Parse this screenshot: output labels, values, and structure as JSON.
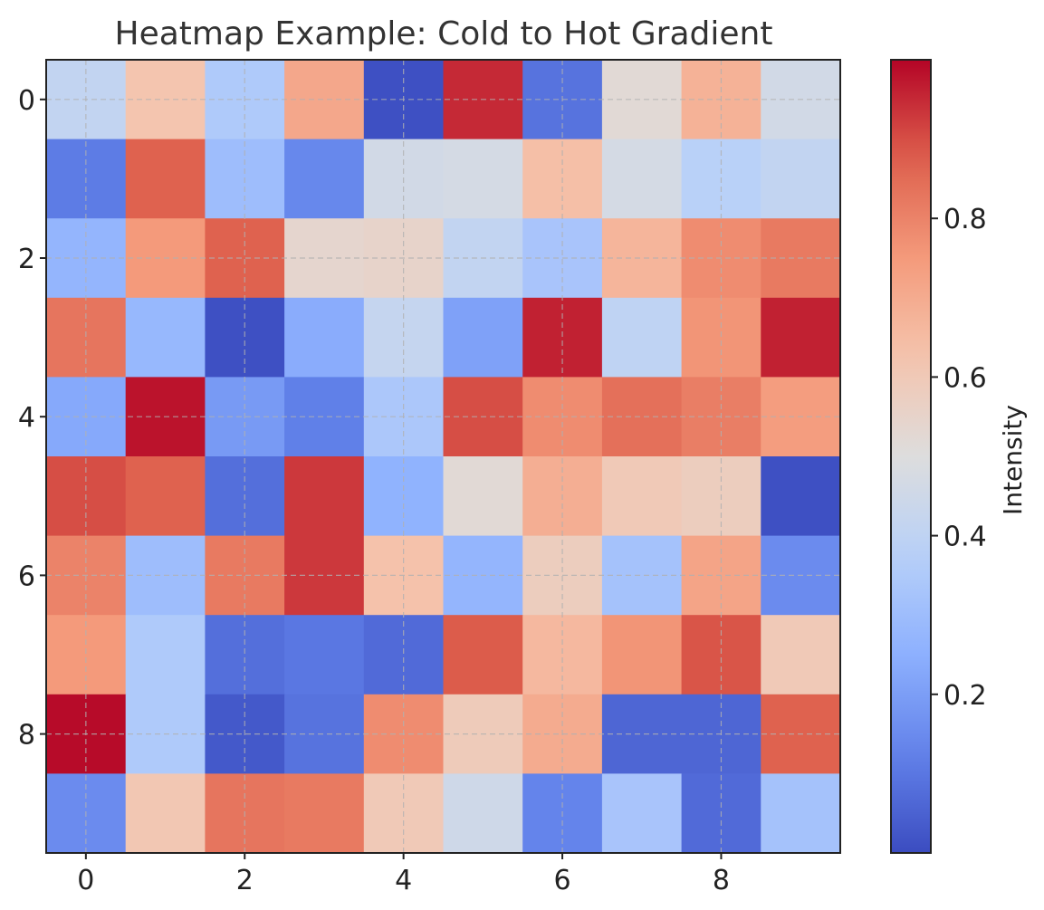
{
  "chart_data": {
    "type": "heatmap",
    "title": "Heatmap Example: Cold to Hot Gradient",
    "xlabel": "",
    "ylabel": "",
    "colormap": "coolwarm",
    "xticks": [
      0,
      2,
      4,
      6,
      8
    ],
    "yticks": [
      0,
      2,
      4,
      6,
      8
    ],
    "grid": true,
    "colorbar": {
      "label": "Intensity",
      "vmin": 0.0,
      "vmax": 1.0,
      "ticks": [
        0.2,
        0.4,
        0.6,
        0.8
      ],
      "tick_labels": [
        "0.2",
        "0.4",
        "0.6",
        "0.8"
      ]
    },
    "values": [
      [
        0.41,
        0.62,
        0.35,
        0.71,
        0.01,
        0.95,
        0.09,
        0.52,
        0.68,
        0.46
      ],
      [
        0.11,
        0.87,
        0.3,
        0.14,
        0.46,
        0.47,
        0.64,
        0.47,
        0.38,
        0.41
      ],
      [
        0.27,
        0.75,
        0.87,
        0.54,
        0.55,
        0.41,
        0.33,
        0.67,
        0.78,
        0.82
      ],
      [
        0.83,
        0.28,
        0.01,
        0.24,
        0.42,
        0.21,
        0.96,
        0.4,
        0.76,
        0.96
      ],
      [
        0.23,
        0.98,
        0.19,
        0.12,
        0.34,
        0.9,
        0.78,
        0.84,
        0.81,
        0.74
      ],
      [
        0.9,
        0.87,
        0.08,
        0.93,
        0.26,
        0.52,
        0.69,
        0.6,
        0.58,
        0.01
      ],
      [
        0.8,
        0.3,
        0.82,
        0.93,
        0.63,
        0.27,
        0.58,
        0.32,
        0.72,
        0.15
      ],
      [
        0.75,
        0.35,
        0.08,
        0.1,
        0.07,
        0.88,
        0.66,
        0.76,
        0.89,
        0.6
      ],
      [
        0.99,
        0.35,
        0.03,
        0.09,
        0.78,
        0.59,
        0.7,
        0.06,
        0.06,
        0.87
      ],
      [
        0.15,
        0.61,
        0.83,
        0.82,
        0.6,
        0.45,
        0.13,
        0.33,
        0.07,
        0.32
      ]
    ]
  }
}
